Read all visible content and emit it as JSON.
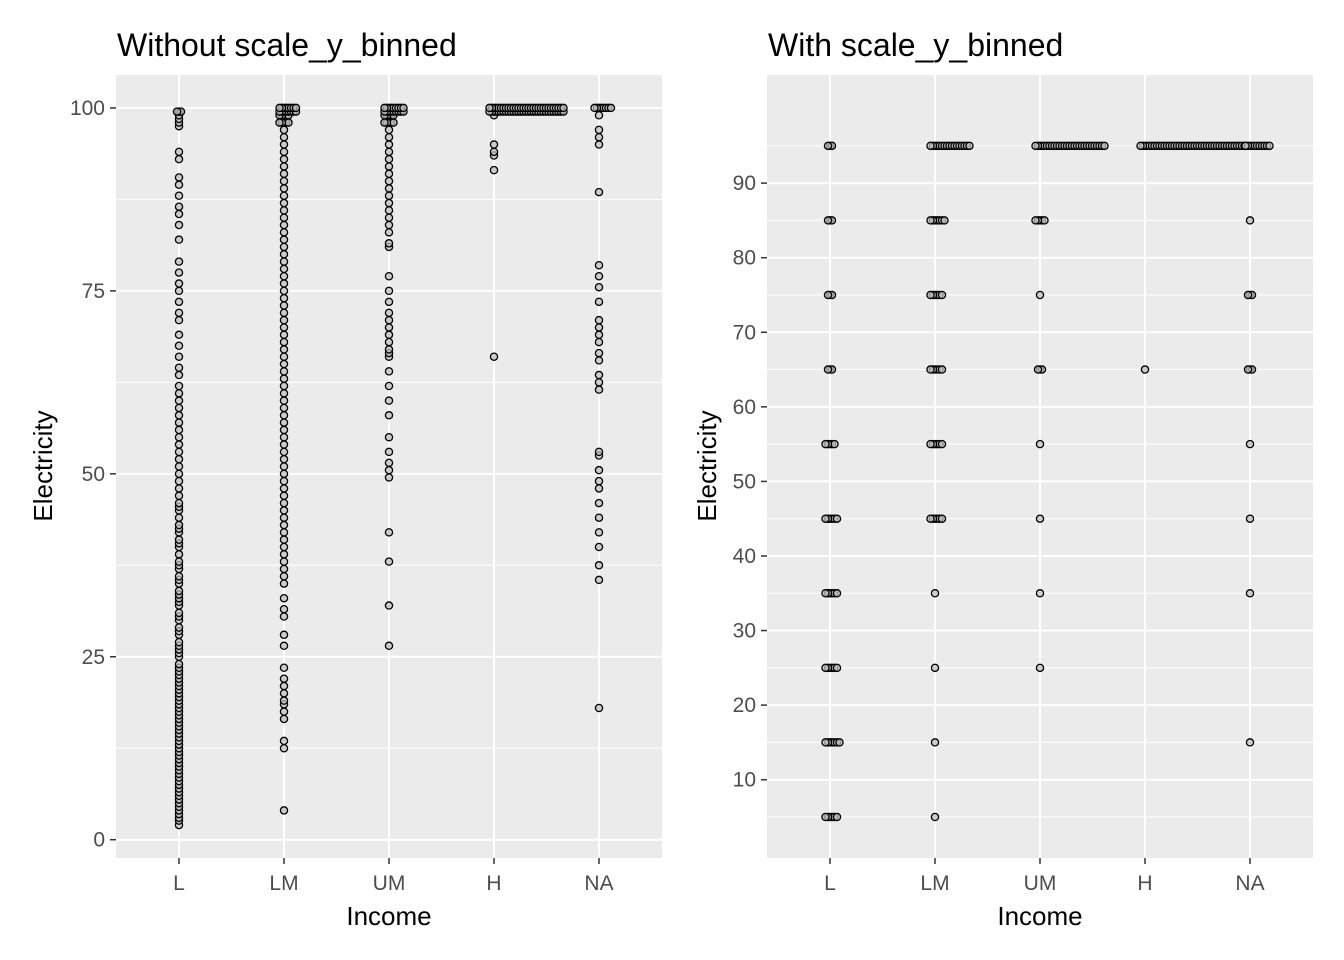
{
  "chart_data": [
    {
      "type": "scatter",
      "title": "Without  scale_y_binned",
      "xlabel": "Income",
      "ylabel": "Electricity",
      "categories": [
        "L",
        "LM",
        "UM",
        "H",
        "NA"
      ],
      "y_ticks": [
        0,
        25,
        50,
        75,
        100
      ],
      "y_tick_labels": [
        "0",
        "25",
        "50",
        "75",
        "100"
      ],
      "ylim": [
        -2.5,
        104.5
      ],
      "grid": true,
      "points": {
        "L": [
          2,
          2.6,
          3,
          3.5,
          4,
          4.5,
          5,
          5.5,
          6,
          6.5,
          7,
          7.5,
          8,
          8.5,
          9,
          9.5,
          10,
          10.5,
          11,
          11.5,
          12,
          12.5,
          13,
          13.5,
          14,
          14.5,
          15,
          15.5,
          16,
          16.5,
          17,
          17.5,
          18,
          18.5,
          19,
          19.5,
          20,
          20.5,
          21,
          21.5,
          22,
          22.5,
          23,
          23.5,
          24,
          25,
          25.5,
          26,
          26.5,
          27,
          28,
          28.5,
          29,
          30,
          30.5,
          31,
          32,
          32.5,
          33,
          33.5,
          34,
          35,
          35.5,
          36,
          37,
          37.5,
          38,
          39,
          40,
          40.5,
          41,
          42,
          42.5,
          43,
          44,
          45,
          45.5,
          46,
          47,
          48,
          49,
          50,
          51,
          52,
          53,
          54,
          55,
          56,
          57,
          58,
          59,
          60,
          61,
          62,
          63.5,
          64.5,
          66,
          67.5,
          69,
          71,
          72,
          73.5,
          75,
          76,
          77.5,
          79,
          82,
          84,
          85.5,
          86.5,
          88,
          89.5,
          90.5,
          93,
          94,
          97.5,
          98,
          98.5,
          99,
          99.5
        ],
        "LM": [
          4,
          12.5,
          13.5,
          16.5,
          17.5,
          18.5,
          19,
          20,
          21,
          22,
          23.5,
          26.5,
          28,
          30.5,
          31.5,
          33,
          35,
          36,
          37,
          38,
          39,
          40,
          41,
          42,
          43,
          44,
          45,
          46,
          47,
          48,
          49,
          50,
          51,
          52,
          53,
          54,
          55,
          56,
          57,
          58,
          59,
          60,
          61,
          62,
          63,
          64,
          65,
          66,
          67,
          68,
          69,
          70,
          71,
          72,
          73,
          74,
          75,
          76,
          77,
          78,
          79,
          80,
          81,
          82,
          83,
          84,
          85,
          86,
          87,
          88,
          89,
          90,
          91,
          92,
          93,
          94,
          95,
          96,
          97,
          98,
          99,
          99.5,
          100
        ],
        "UM": [
          26.5,
          32,
          38,
          42,
          49.5,
          50.5,
          51.5,
          53,
          55,
          58,
          60,
          62,
          64,
          66,
          66.5,
          67,
          68,
          69,
          70,
          71,
          72,
          73.5,
          75,
          77,
          81,
          81.5,
          83,
          84,
          85,
          86,
          87,
          88,
          89,
          90,
          91,
          92,
          93,
          94,
          95,
          96,
          97,
          98,
          99,
          99.5,
          100
        ],
        "H": [
          66,
          91.5,
          93.5,
          94,
          95,
          99,
          99.5,
          100
        ],
        "NA": [
          18,
          35.5,
          37.5,
          40,
          42,
          44,
          46,
          48,
          49,
          50.5,
          52.5,
          53,
          61.5,
          62.5,
          63.5,
          65.5,
          66.5,
          68,
          69,
          70,
          71,
          73.5,
          75.5,
          77,
          78.5,
          88.5,
          95,
          96,
          97,
          99,
          100
        ]
      },
      "point_spread": {
        "L": 4,
        "LM": 14,
        "UM": 16,
        "H": 70,
        "NA": 14
      }
    },
    {
      "type": "scatter",
      "title": "With scale_y_binned",
      "xlabel": "Income",
      "ylabel": "Electricity",
      "categories": [
        "L",
        "LM",
        "UM",
        "H",
        "NA"
      ],
      "y_ticks": [
        10,
        20,
        30,
        40,
        50,
        60,
        70,
        80,
        90
      ],
      "y_tick_labels": [
        "10",
        "20",
        "30",
        "40",
        "50",
        "60",
        "70",
        "80",
        "90"
      ],
      "ylim": [
        -0.5,
        104.5
      ],
      "grid": true,
      "points": {
        "L": [
          5,
          15,
          25,
          35,
          45,
          55,
          65,
          75,
          85,
          95
        ],
        "LM": [
          5,
          15,
          25,
          35,
          45,
          55,
          65,
          75,
          85,
          95
        ],
        "UM": [
          25,
          35,
          45,
          55,
          65,
          75,
          85,
          95
        ],
        "H": [
          65,
          95
        ],
        "NA": [
          15,
          35,
          45,
          55,
          65,
          75,
          85,
          95
        ]
      },
      "bin_spread": {
        "L": {
          "5": 8,
          "15": 10,
          "25": 8,
          "35": 8,
          "45": 8,
          "55": 6,
          "65": 4,
          "75": 4,
          "85": 2,
          "95": 2
        },
        "LM": {
          "5": 0,
          "15": 0,
          "25": 0,
          "35": 0,
          "45": 8,
          "55": 8,
          "65": 8,
          "75": 8,
          "85": 10,
          "95": 36
        },
        "UM": {
          "25": 0,
          "35": 0,
          "45": 0,
          "55": 0,
          "65": 2,
          "75": 0,
          "85": 6,
          "95": 66
        },
        "H": {
          "65": 0,
          "95": 100
        },
        "NA": {
          "15": 0,
          "35": 0,
          "45": 0,
          "55": 0,
          "65": 4,
          "75": 2,
          "85": 0,
          "95": 20
        }
      }
    }
  ]
}
